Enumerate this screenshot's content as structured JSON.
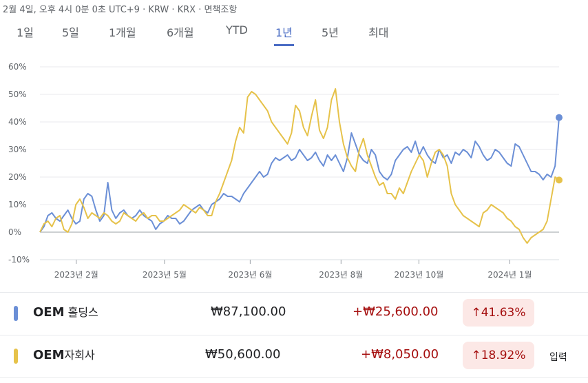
{
  "header": {
    "text": "2월 4일, 오후 4시 0분 0초 UTC+9 · KRW · KRX · 면책조항"
  },
  "tabs": [
    {
      "label": "1일",
      "active": false
    },
    {
      "label": "5일",
      "active": false
    },
    {
      "label": "1개월",
      "active": false
    },
    {
      "label": "6개월",
      "active": false
    },
    {
      "label": "YTD",
      "active": false
    },
    {
      "label": "1년",
      "active": true
    },
    {
      "label": "5년",
      "active": false
    },
    {
      "label": "최대",
      "active": false
    }
  ],
  "colors": {
    "blue": "#6b8fd6",
    "yellow": "#e6c24a",
    "positive": "#a50e0e",
    "positive_bg": "#fce8e6",
    "active_tab": "#4a6cc4"
  },
  "chart_data": {
    "type": "line",
    "ylim": [
      -10,
      60
    ],
    "yticks": [
      -10,
      0,
      10,
      20,
      30,
      40,
      50,
      60
    ],
    "ytick_labels": [
      "-10%",
      "0%",
      "10%",
      "20%",
      "30%",
      "40%",
      "50%",
      "60%"
    ],
    "xtick_labels": [
      "2023년 2월",
      "2023년 5월",
      "2023년 6월",
      "2023년 8월",
      "2023년 10월",
      "2024년 1월"
    ],
    "xtick_positions": [
      0.07,
      0.24,
      0.405,
      0.58,
      0.73,
      0.905
    ],
    "series": [
      {
        "name": "OEM 홀딩스",
        "color": "#6b8fd6",
        "values": [
          0,
          2,
          6,
          7,
          5,
          4,
          6,
          8,
          5,
          3,
          4,
          12,
          14,
          13,
          8,
          4,
          6,
          18,
          8,
          5,
          7,
          8,
          6,
          5,
          6,
          8,
          6,
          5,
          4,
          1,
          3,
          4,
          6,
          5,
          5,
          3,
          4,
          6,
          8,
          9,
          10,
          8,
          7,
          10,
          11,
          12,
          14,
          13,
          13,
          12,
          11,
          14,
          16,
          18,
          20,
          22,
          20,
          21,
          25,
          27,
          26,
          27,
          28,
          26,
          27,
          30,
          28,
          26,
          27,
          29,
          26,
          24,
          28,
          26,
          28,
          25,
          22,
          27,
          36,
          32,
          28,
          26,
          25,
          30,
          28,
          22,
          20,
          19,
          21,
          26,
          28,
          30,
          31,
          29,
          33,
          28,
          31,
          28,
          26,
          25,
          30,
          27,
          28,
          25,
          29,
          28,
          30,
          29,
          27,
          33,
          31,
          28,
          26,
          27,
          30,
          29,
          27,
          25,
          24,
          32,
          31,
          28,
          25,
          22,
          22,
          21,
          19,
          21,
          20,
          24,
          41.6
        ]
      },
      {
        "name": "OEM자회사",
        "color": "#e6c24a",
        "values": [
          0,
          3,
          4,
          2,
          5,
          6,
          1,
          0,
          3,
          10,
          12,
          9,
          5,
          7,
          6,
          5,
          7,
          6,
          4,
          3,
          4,
          7,
          6,
          5,
          4,
          6,
          7,
          5,
          6,
          6,
          4,
          4,
          5,
          6,
          7,
          8,
          10,
          9,
          8,
          7,
          9,
          8,
          6,
          6,
          11,
          14,
          18,
          22,
          26,
          33,
          38,
          36,
          49,
          51,
          50,
          48,
          46,
          44,
          40,
          38,
          36,
          34,
          32,
          36,
          46,
          44,
          38,
          35,
          42,
          48,
          37,
          34,
          38,
          48,
          52,
          40,
          32,
          27,
          24,
          22,
          30,
          34,
          28,
          24,
          20,
          17,
          18,
          14,
          14,
          12,
          16,
          14,
          18,
          22,
          25,
          28,
          26,
          20,
          25,
          29,
          30,
          28,
          24,
          14,
          10,
          8,
          6,
          5,
          4,
          3,
          2,
          7,
          8,
          10,
          9,
          8,
          7,
          5,
          4,
          2,
          1,
          -2,
          -4,
          -2,
          -1,
          0,
          1,
          4,
          12,
          20,
          18.9
        ]
      }
    ]
  },
  "rows": [
    {
      "name": "OEM",
      "name_suffix": " 홀딩스",
      "price": "₩87,100.00",
      "change": "+₩25,600.00",
      "pct": "↑41.63%",
      "extra": ""
    },
    {
      "name": "OEM",
      "name_suffix": "자회사",
      "price": "₩50,600.00",
      "change": "+₩8,050.00",
      "pct": "↑18.92%",
      "extra": "입력"
    }
  ]
}
